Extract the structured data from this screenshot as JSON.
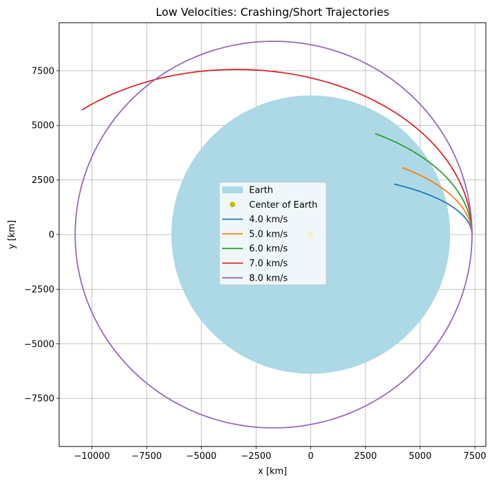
{
  "chart_data": {
    "type": "line",
    "title": "Low Velocities: Crashing/Short Trajectories",
    "xlabel": "x [km]",
    "ylabel": "y [km]",
    "xlim": [
      -11500,
      8000
    ],
    "ylim": [
      -9700,
      9700
    ],
    "xticks": [
      -10000,
      -7500,
      -5000,
      -2500,
      0,
      2500,
      5000,
      7500
    ],
    "yticks": [
      -7500,
      -5000,
      -2500,
      0,
      2500,
      5000,
      7500
    ],
    "xtick_labels": [
      "−10000",
      "−7500",
      "−5000",
      "−2500",
      "0",
      "2500",
      "5000",
      "7500"
    ],
    "ytick_labels": [
      "−7500",
      "−5000",
      "−2500",
      "0",
      "2500",
      "5000",
      "7500"
    ],
    "grid": true,
    "legend_position": "center",
    "earth": {
      "label": "Earth",
      "center": [
        0,
        0
      ],
      "radius_km": 6371,
      "color": "#add8e6"
    },
    "center_marker": {
      "label": "Center of Earth",
      "x": 0,
      "y": 0,
      "color": "#bfbf00"
    },
    "series": [
      {
        "name": "4.0 km/s",
        "color": "#1f77b4",
        "shape": "arc",
        "center": [
          -970,
          0
        ],
        "a": 8340,
        "b": 2820,
        "theta_end": 55
      },
      {
        "name": "5.0 km/s",
        "color": "#ff7f0e",
        "shape": "arc",
        "center": [
          -1550,
          0
        ],
        "a": 8920,
        "b": 4000,
        "theta_end": 50
      },
      {
        "name": "6.0 km/s",
        "color": "#2ca02c",
        "shape": "arc",
        "center": [
          -2350,
          0
        ],
        "a": 9720,
        "b": 5510,
        "theta_end": 57
      },
      {
        "name": "7.0 km/s",
        "color": "#d62728",
        "shape": "arc",
        "center": [
          -3400,
          0
        ],
        "a": 10770,
        "b": 7560,
        "theta_end": 131
      },
      {
        "name": "8.0 km/s",
        "color": "#9467bd",
        "shape": "orbit",
        "center": [
          -1700,
          0
        ],
        "a": 9070,
        "b": 8850,
        "theta_end": 360
      }
    ]
  }
}
